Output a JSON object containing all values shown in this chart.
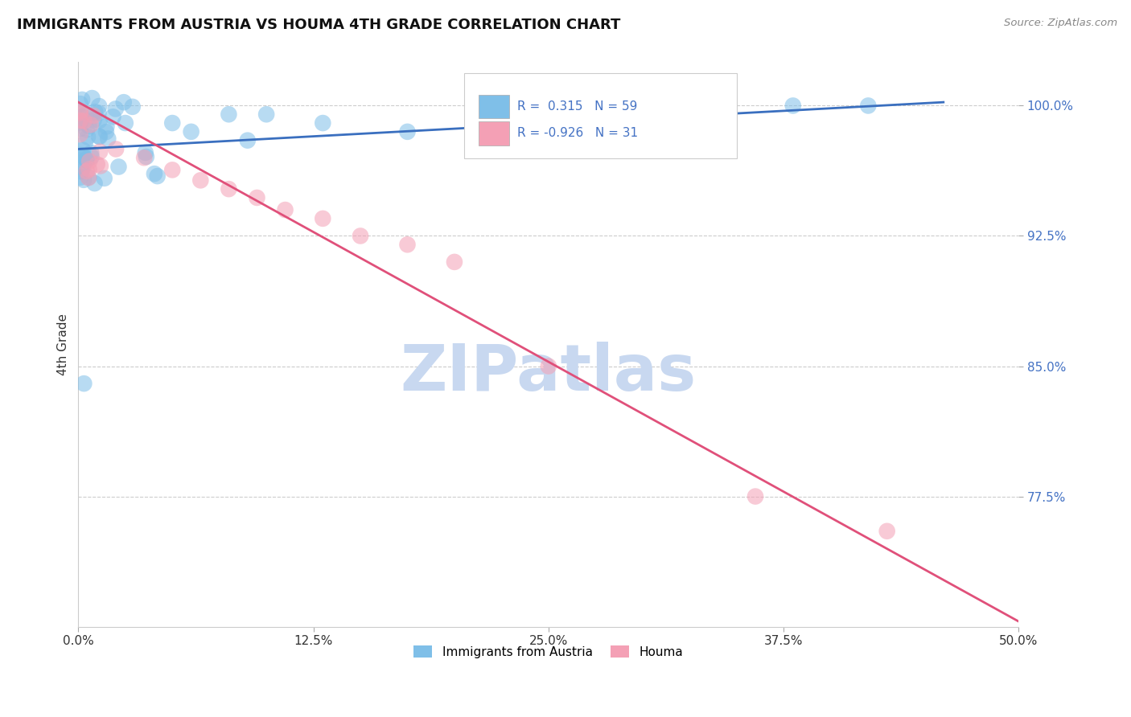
{
  "title": "IMMIGRANTS FROM AUSTRIA VS HOUMA 4TH GRADE CORRELATION CHART",
  "source_text": "Source: ZipAtlas.com",
  "ylabel": "4th Grade",
  "xlim": [
    0.0,
    0.5
  ],
  "ylim": [
    0.7,
    1.025
  ],
  "xtick_labels": [
    "0.0%",
    "12.5%",
    "25.0%",
    "37.5%",
    "50.0%"
  ],
  "xtick_values": [
    0.0,
    0.125,
    0.25,
    0.375,
    0.5
  ],
  "ytick_labels": [
    "77.5%",
    "85.0%",
    "92.5%",
    "100.0%"
  ],
  "ytick_values": [
    0.775,
    0.85,
    0.925,
    1.0
  ],
  "blue_color": "#7fbfe8",
  "pink_color": "#f4a0b5",
  "blue_line_color": "#3a6fbf",
  "pink_line_color": "#e0507a",
  "R_blue": 0.315,
  "N_blue": 59,
  "R_pink": -0.926,
  "N_pink": 31,
  "watermark": "ZIPatlas",
  "watermark_color": "#c8d8f0",
  "legend_label_blue": "Immigrants from Austria",
  "legend_label_pink": "Houma",
  "blue_line_x0": 0.0,
  "blue_line_y0": 0.975,
  "blue_line_x1": 0.46,
  "blue_line_y1": 1.002,
  "pink_line_x0": 0.0,
  "pink_line_y0": 1.002,
  "pink_line_x1": 0.5,
  "pink_line_y1": 0.703,
  "grid_color": "#cccccc",
  "background_color": "#ffffff",
  "tick_color": "#4472c4",
  "label_color": "#333333"
}
